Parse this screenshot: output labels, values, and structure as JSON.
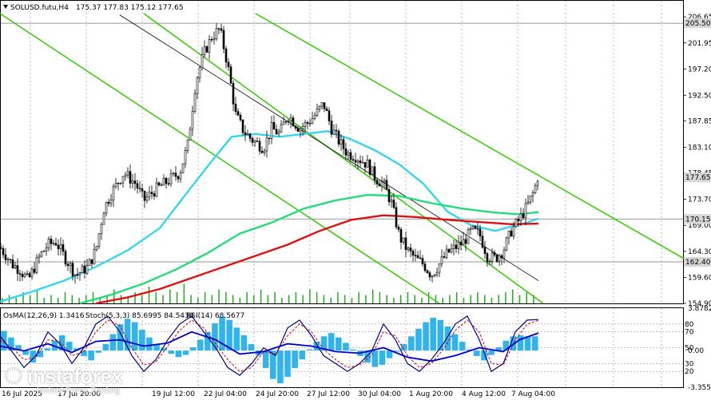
{
  "header": {
    "symbol": "SOLUSD.futu,H4",
    "ohlc": "175.37 177.83 175.12 177.65"
  },
  "indicator_label": {
    "osma": "OsMA(12,26,9) 1.3416",
    "stoch": "Stoch(5,3,3) 85.6995 84.5438",
    "rsi": "RSI(14) 68.5677"
  },
  "logo": {
    "name": "instaforex",
    "tagline": "Instant Forex Trading"
  },
  "colors": {
    "price_bar": "#000000",
    "ema_fast": "#33d6ee",
    "ema_mid": "#22dd77",
    "ema_slow": "#dd1111",
    "channel": "#33cc00",
    "osma": "#30b4ee",
    "stoch_main": "#000088",
    "stoch_signal": "#cc0000",
    "rsi": "#0000cc"
  },
  "chart_data": [
    {
      "type": "candlestick",
      "title": "SOLUSD.futu,H4",
      "ylim": [
        154.9,
        207.25
      ],
      "y_ticks": [
        "206.65",
        "201.95",
        "197.20",
        "192.50",
        "187.85",
        "183.10",
        "178.45",
        "173.70",
        "169.00",
        "164.30",
        "159.60",
        "154.90"
      ],
      "price_labels": [
        "205.50",
        "177.65",
        "170.15",
        "162.40"
      ],
      "x_ticks": [
        "16 Jul 2025",
        "17 Jul 20:00",
        "19 Jul 12:00",
        "22 Jul 04:00",
        "24 Jul 20:00",
        "27 Jul 12:00",
        "30 Jul 04:00",
        "1 Aug 20:00",
        "4 Aug 12:00",
        "7 Aug 04:00"
      ],
      "horizontal_levels": [
        205.5,
        170.15,
        162.4
      ],
      "close_path": [
        [
          0,
          165.0
        ],
        [
          8,
          163.5
        ],
        [
          15,
          162.0
        ],
        [
          25,
          161.0
        ],
        [
          35,
          159.0
        ],
        [
          50,
          163.5
        ],
        [
          60,
          165.5
        ],
        [
          70,
          166.0
        ],
        [
          80,
          163.5
        ],
        [
          95,
          160.0
        ],
        [
          110,
          161.5
        ],
        [
          120,
          164.5
        ],
        [
          130,
          172.0
        ],
        [
          140,
          175.0
        ],
        [
          155,
          178.5
        ],
        [
          170,
          176.5
        ],
        [
          180,
          173.5
        ],
        [
          195,
          175.5
        ],
        [
          210,
          177.0
        ],
        [
          225,
          178.5
        ],
        [
          235,
          183.5
        ],
        [
          245,
          195.0
        ],
        [
          255,
          200.0
        ],
        [
          265,
          203.0
        ],
        [
          275,
          204.5
        ],
        [
          285,
          198.0
        ],
        [
          295,
          189.0
        ],
        [
          305,
          186.0
        ],
        [
          315,
          184.5
        ],
        [
          330,
          183.0
        ],
        [
          340,
          186.5
        ],
        [
          350,
          185.5
        ],
        [
          360,
          189.0
        ],
        [
          375,
          186.5
        ],
        [
          385,
          187.5
        ],
        [
          395,
          189.0
        ],
        [
          405,
          191.0
        ],
        [
          415,
          186.5
        ],
        [
          425,
          184.0
        ],
        [
          435,
          182.0
        ],
        [
          445,
          181.5
        ],
        [
          460,
          180.0
        ],
        [
          470,
          177.5
        ],
        [
          480,
          176.5
        ],
        [
          490,
          173.0
        ],
        [
          500,
          167.0
        ],
        [
          510,
          164.5
        ],
        [
          520,
          163.0
        ],
        [
          530,
          162.0
        ],
        [
          540,
          160.0
        ],
        [
          550,
          162.0
        ],
        [
          560,
          164.0
        ],
        [
          570,
          165.0
        ],
        [
          580,
          166.0
        ],
        [
          590,
          168.0
        ],
        [
          600,
          167.5
        ],
        [
          610,
          163.5
        ],
        [
          620,
          163.0
        ],
        [
          630,
          164.5
        ],
        [
          640,
          168.0
        ],
        [
          650,
          170.0
        ],
        [
          660,
          172.5
        ],
        [
          668,
          175.0
        ],
        [
          673,
          177.65
        ]
      ],
      "volumes": [
        2,
        3,
        2,
        4,
        3,
        5,
        2,
        3,
        2,
        4,
        3,
        2,
        3,
        4,
        2,
        3,
        5,
        3,
        2,
        4,
        3,
        6,
        4,
        3,
        5,
        4,
        7,
        3,
        2,
        4,
        3,
        5,
        4,
        3,
        2,
        4,
        3,
        5,
        3,
        4,
        2,
        3,
        4,
        3,
        5,
        4,
        3,
        2,
        4,
        3,
        2,
        4,
        3,
        5,
        4,
        3,
        2,
        3,
        4,
        3,
        2,
        4,
        3,
        2,
        3,
        4,
        2,
        3,
        4,
        3,
        2,
        3,
        4,
        5,
        3,
        4,
        3
      ]
    },
    {
      "type": "line",
      "series": [
        {
          "name": "EMA fast",
          "color": "#33d6ee",
          "points": [
            [
              0,
              155.2
            ],
            [
              40,
              157.0
            ],
            [
              80,
              159.0
            ],
            [
              120,
              161.5
            ],
            [
              160,
              164.5
            ],
            [
              200,
              168.5
            ],
            [
              240,
              176.0
            ],
            [
              270,
              181.5
            ],
            [
              290,
              185.0
            ],
            [
              320,
              185.5
            ],
            [
              350,
              185.0
            ],
            [
              380,
              185.5
            ],
            [
              410,
              186.0
            ],
            [
              440,
              184.5
            ],
            [
              470,
              182.5
            ],
            [
              500,
              180.0
            ],
            [
              530,
              176.5
            ],
            [
              560,
              171.5
            ],
            [
              590,
              169.0
            ],
            [
              620,
              168.0
            ],
            [
              640,
              168.8
            ],
            [
              660,
              169.5
            ],
            [
              674,
              170.2
            ]
          ]
        },
        {
          "name": "EMA mid",
          "color": "#22dd77",
          "points": [
            [
              100,
              154.9
            ],
            [
              140,
              156.5
            ],
            [
              180,
              158.5
            ],
            [
              220,
              161.0
            ],
            [
              260,
              164.0
            ],
            [
              300,
              167.5
            ],
            [
              340,
              169.5
            ],
            [
              380,
              172.0
            ],
            [
              420,
              173.5
            ],
            [
              460,
              174.5
            ],
            [
              500,
              174.3
            ],
            [
              540,
              173.0
            ],
            [
              580,
              172.0
            ],
            [
              620,
              171.3
            ],
            [
              650,
              171.0
            ],
            [
              674,
              171.4
            ]
          ]
        },
        {
          "name": "EMA slow",
          "color": "#dd1111",
          "points": [
            [
              120,
              154.9
            ],
            [
              160,
              156.0
            ],
            [
              200,
              157.5
            ],
            [
              240,
              159.5
            ],
            [
              280,
              161.5
            ],
            [
              320,
              163.5
            ],
            [
              360,
              165.5
            ],
            [
              400,
              168.0
            ],
            [
              440,
              170.0
            ],
            [
              480,
              170.8
            ],
            [
              520,
              170.5
            ],
            [
              560,
              170.0
            ],
            [
              600,
              169.6
            ],
            [
              640,
              169.2
            ],
            [
              674,
              169.3
            ]
          ]
        }
      ]
    },
    {
      "type": "line",
      "title": "",
      "channels": [
        {
          "name": "upper",
          "points": [
            [
              320,
              207.25
            ],
            [
              856,
              163.0
            ]
          ]
        },
        {
          "name": "lower",
          "points": [
            [
              0,
              207.25
            ],
            [
              550,
              154.9
            ]
          ]
        },
        {
          "name": "inner",
          "points": [
            [
              180,
              207.25
            ],
            [
              680,
              154.9
            ]
          ]
        }
      ]
    },
    {
      "type": "bar",
      "title": "OsMA(12,26,9) 1.3416",
      "y_ticks": [
        "3.8782",
        "0.00",
        "-3.3552"
      ],
      "ylim": [
        -3.3552,
        3.8782
      ],
      "values": [
        1.8,
        1.2,
        0.5,
        -0.4,
        -1.1,
        -0.6,
        0.2,
        0.9,
        1.4,
        0.8,
        0.2,
        -0.5,
        -0.9,
        -0.2,
        0.6,
        1.5,
        2.4,
        2.9,
        2.6,
        1.9,
        1.2,
        0.6,
        0.2,
        -0.3,
        -0.6,
        -0.4,
        0.3,
        1.0,
        1.7,
        2.5,
        3.1,
        2.8,
        2.1,
        1.4,
        0.6,
        -0.4,
        -1.6,
        -2.6,
        -3.0,
        -2.4,
        -1.6,
        -0.8,
        0.1,
        0.8,
        1.3,
        1.6,
        1.2,
        0.7,
        0.1,
        -0.5,
        -1.1,
        -1.5,
        -1.3,
        -0.7,
        -0.1,
        0.6,
        1.3,
        2.0,
        2.6,
        3.0,
        2.8,
        2.2,
        1.5,
        0.8,
        0.1,
        -0.5,
        -0.9,
        -0.4,
        0.3,
        0.9,
        1.3,
        1.4,
        1.3,
        1.3
      ]
    },
    {
      "type": "line",
      "title": "Stoch(5,3,3) 85.6995 84.5438",
      "y_ticks": [
        "80",
        "70",
        "50",
        "30",
        "20"
      ],
      "ylim": [
        0,
        100
      ],
      "series": [
        {
          "name": "Stoch main",
          "color": "#000088",
          "points": [
            [
              0,
              65
            ],
            [
              15,
              45
            ],
            [
              30,
              25
            ],
            [
              45,
              40
            ],
            [
              60,
              70
            ],
            [
              75,
              55
            ],
            [
              90,
              30
            ],
            [
              105,
              50
            ],
            [
              120,
              80
            ],
            [
              135,
              90
            ],
            [
              150,
              70
            ],
            [
              165,
              40
            ],
            [
              180,
              20
            ],
            [
              195,
              35
            ],
            [
              210,
              60
            ],
            [
              225,
              80
            ],
            [
              240,
              90
            ],
            [
              255,
              70
            ],
            [
              270,
              50
            ],
            [
              285,
              25
            ],
            [
              300,
              15
            ],
            [
              315,
              30
            ],
            [
              330,
              50
            ],
            [
              345,
              40
            ],
            [
              360,
              75
            ],
            [
              375,
              85
            ],
            [
              390,
              65
            ],
            [
              405,
              40
            ],
            [
              420,
              30
            ],
            [
              435,
              20
            ],
            [
              450,
              30
            ],
            [
              465,
              45
            ],
            [
              480,
              80
            ],
            [
              495,
              60
            ],
            [
              510,
              30
            ],
            [
              525,
              20
            ],
            [
              540,
              35
            ],
            [
              555,
              55
            ],
            [
              570,
              80
            ],
            [
              585,
              90
            ],
            [
              600,
              60
            ],
            [
              615,
              20
            ],
            [
              630,
              30
            ],
            [
              645,
              70
            ],
            [
              660,
              85
            ],
            [
              674,
              85.7
            ]
          ]
        },
        {
          "name": "Stoch signal",
          "color": "#cc0000",
          "points": [
            [
              0,
              60
            ],
            [
              15,
              50
            ],
            [
              30,
              35
            ],
            [
              45,
              38
            ],
            [
              60,
              60
            ],
            [
              75,
              58
            ],
            [
              90,
              40
            ],
            [
              105,
              45
            ],
            [
              120,
              70
            ],
            [
              135,
              85
            ],
            [
              150,
              78
            ],
            [
              165,
              50
            ],
            [
              180,
              28
            ],
            [
              195,
              32
            ],
            [
              210,
              52
            ],
            [
              225,
              72
            ],
            [
              240,
              85
            ],
            [
              255,
              75
            ],
            [
              270,
              55
            ],
            [
              285,
              35
            ],
            [
              300,
              20
            ],
            [
              315,
              25
            ],
            [
              330,
              45
            ],
            [
              345,
              42
            ],
            [
              360,
              65
            ],
            [
              375,
              80
            ],
            [
              390,
              70
            ],
            [
              405,
              48
            ],
            [
              420,
              35
            ],
            [
              435,
              25
            ],
            [
              450,
              28
            ],
            [
              465,
              40
            ],
            [
              480,
              70
            ],
            [
              495,
              65
            ],
            [
              510,
              40
            ],
            [
              525,
              25
            ],
            [
              540,
              30
            ],
            [
              555,
              48
            ],
            [
              570,
              72
            ],
            [
              585,
              85
            ],
            [
              600,
              70
            ],
            [
              615,
              30
            ],
            [
              630,
              28
            ],
            [
              645,
              60
            ],
            [
              660,
              80
            ],
            [
              674,
              84.5
            ]
          ]
        }
      ]
    },
    {
      "type": "line",
      "title": "RSI(14) 68.5677",
      "series": [
        {
          "name": "RSI",
          "color": "#0000cc",
          "points": [
            [
              0,
              52
            ],
            [
              30,
              46
            ],
            [
              60,
              55
            ],
            [
              90,
              44
            ],
            [
              120,
              58
            ],
            [
              150,
              60
            ],
            [
              180,
              52
            ],
            [
              210,
              56
            ],
            [
              240,
              70
            ],
            [
              270,
              60
            ],
            [
              300,
              42
            ],
            [
              330,
              45
            ],
            [
              360,
              55
            ],
            [
              390,
              52
            ],
            [
              420,
              45
            ],
            [
              450,
              43
            ],
            [
              480,
              50
            ],
            [
              510,
              38
            ],
            [
              540,
              33
            ],
            [
              570,
              40
            ],
            [
              600,
              50
            ],
            [
              630,
              45
            ],
            [
              650,
              60
            ],
            [
              674,
              68.6
            ]
          ]
        }
      ]
    }
  ]
}
